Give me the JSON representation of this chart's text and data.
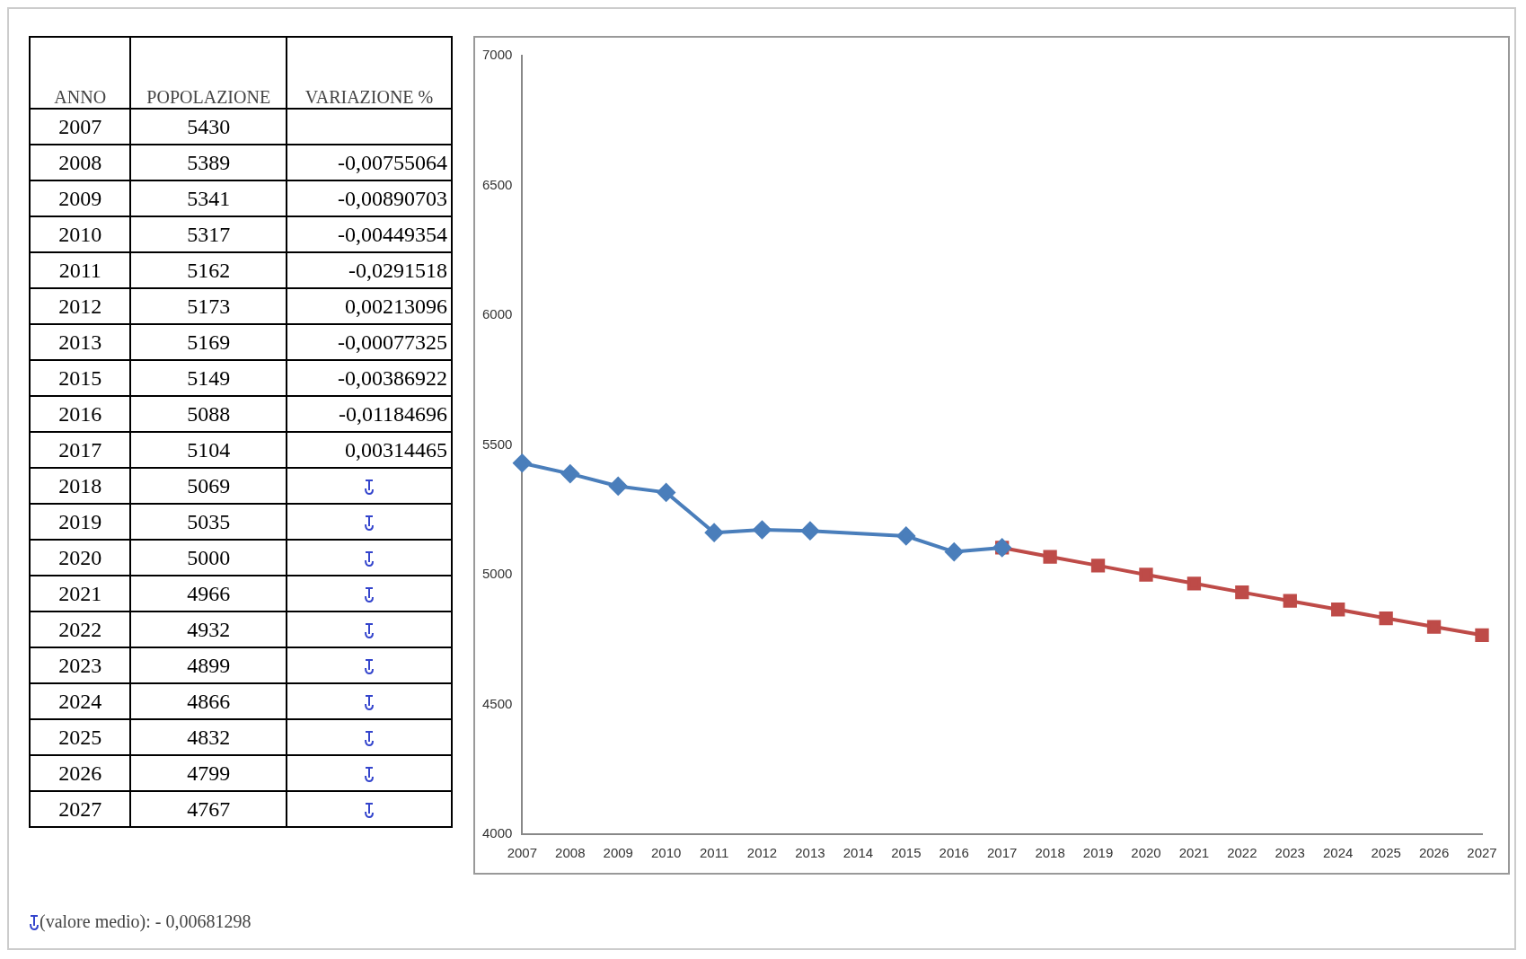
{
  "chart_data": {
    "type": "line",
    "categories": [
      "2007",
      "2008",
      "2009",
      "2010",
      "2011",
      "2012",
      "2013",
      "2014",
      "2015",
      "2016",
      "2017",
      "2018",
      "2019",
      "2020",
      "2021",
      "2022",
      "2023",
      "2024",
      "2025",
      "2026",
      "2027"
    ],
    "series": [
      {
        "color": "#4a7ebb",
        "marker": "diamond",
        "values": [
          5430,
          5389,
          5341,
          5317,
          5162,
          5173,
          5169,
          null,
          5149,
          5088,
          5104,
          null,
          null,
          null,
          null,
          null,
          null,
          null,
          null,
          null,
          null
        ]
      },
      {
        "color": "#be4b48",
        "marker": "square",
        "values": [
          null,
          null,
          null,
          null,
          null,
          null,
          null,
          null,
          null,
          null,
          5104,
          5069,
          5035,
          5000,
          4966,
          4932,
          4899,
          4866,
          4832,
          4799,
          4767
        ]
      }
    ],
    "ylim": [
      4000,
      7000
    ],
    "yticks": [
      4000,
      4500,
      5000,
      5500,
      6000,
      6500,
      7000
    ],
    "grid": false,
    "legend": false,
    "annotations": [
      "ANNO",
      "POPOLAZIONE",
      "VARIAZIONE %",
      "5430",
      "5389",
      "5341",
      "5317",
      "5162",
      "5173",
      "5169",
      "5149",
      "5088",
      "5104",
      "5069",
      "5035",
      "5000",
      "4966",
      "4932",
      "4899",
      "4866",
      "4832",
      "4799",
      "4767",
      "-0,00755064",
      "-0,00890703",
      "-0,00449354",
      "-0,0291518",
      "0,00213096",
      "-0,00077325",
      "-0,00386922",
      "-0,01184696",
      "0,00314465",
      "(valore medio): - 0,00681298"
    ]
  }
}
